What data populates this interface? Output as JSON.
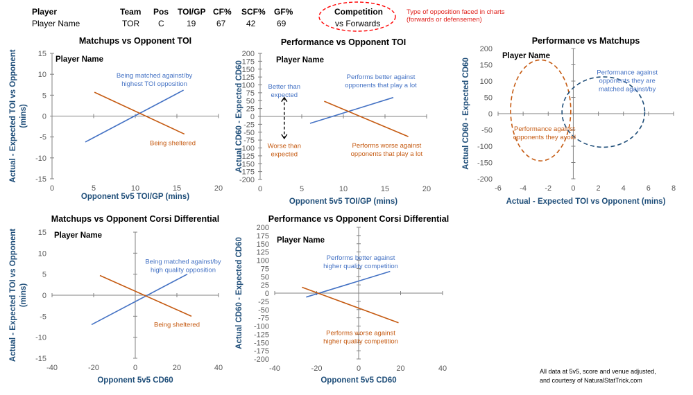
{
  "header": {
    "columns": [
      "Player",
      "Team",
      "Pos",
      "TOI/GP",
      "CF%",
      "SCF%",
      "GF%"
    ],
    "values": [
      "Player Name",
      "TOR",
      "C",
      "19",
      "67",
      "42",
      "69"
    ],
    "competition_label": "Competition",
    "competition_value": "vs Forwards",
    "note_line1": "Type of opposition faced in charts",
    "note_line2": "(forwards or defensemen)"
  },
  "footer": {
    "line1": "All data at 5v5, score and venue adjusted,",
    "line2": "and courtesy of NaturalStatTrick.com"
  },
  "colors": {
    "blue": "#4472c4",
    "orange": "#c55a11",
    "axis": "#1f4e79",
    "red": "#ff0000"
  },
  "chart_data": [
    {
      "type": "line",
      "title": "Matchups vs Opponent TOI",
      "xlabel": "Opponent 5v5 TOI/GP (mins)",
      "ylabel_line1": "Actual - Expected TOI vs Opponent",
      "ylabel_line2": "(mins)",
      "xlim": [
        0,
        20
      ],
      "ylim": [
        -15,
        15
      ],
      "xticks": [
        0,
        5,
        10,
        15,
        20
      ],
      "yticks": [
        -15,
        -10,
        -5,
        0,
        5,
        10,
        15
      ],
      "player_label": "Player Name",
      "series": [
        {
          "name": "matched",
          "color": "blue",
          "x": [
            4,
            15.8
          ],
          "y": [
            -6.2,
            6.2
          ]
        },
        {
          "name": "sheltered",
          "color": "orange",
          "x": [
            5.1,
            15.9
          ],
          "y": [
            5.7,
            -4.3
          ]
        }
      ],
      "annotations": [
        {
          "lines": [
            "Being matched against/by",
            "highest TOI opposition"
          ],
          "color": "blue",
          "x": 12.3,
          "y": 9.2
        },
        {
          "lines": [
            "Being sheltered"
          ],
          "color": "orange",
          "x": 14.5,
          "y": -7
        }
      ]
    },
    {
      "type": "line",
      "title": "Performance vs Opponent TOI",
      "xlabel": "Opponent 5v5 TOI/GP (mins)",
      "ylabel_line1": "Actual CD60 - Expected CD60",
      "ylabel_line2": "",
      "xlim": [
        0,
        20
      ],
      "ylim": [
        -200,
        200
      ],
      "xticks": [
        0,
        5,
        10,
        15,
        20
      ],
      "yticks": [
        -200,
        -175,
        -150,
        -125,
        -100,
        -75,
        -50,
        -25,
        0,
        25,
        50,
        75,
        100,
        125,
        150,
        175,
        200
      ],
      "player_label": "Player Name",
      "series": [
        {
          "name": "better",
          "color": "blue",
          "x": [
            6,
            16
          ],
          "y": [
            -22,
            60
          ]
        },
        {
          "name": "worse",
          "color": "orange",
          "x": [
            7.7,
            17.8
          ],
          "y": [
            48,
            -64
          ]
        }
      ],
      "annotations": [
        {
          "lines": [
            "Better than",
            "expected"
          ],
          "color": "blue",
          "x": 2.9,
          "y": 88
        },
        {
          "lines": [
            "Worse than",
            "expected"
          ],
          "color": "orange",
          "x": 2.9,
          "y": -100
        },
        {
          "lines": [
            "Performs better against",
            "opponents that play a lot"
          ],
          "color": "blue",
          "x": 14.5,
          "y": 119
        },
        {
          "lines": [
            "Performs worse against",
            "opponents that play a lot"
          ],
          "color": "orange",
          "x": 15.2,
          "y": -99
        }
      ]
    },
    {
      "type": "scatter",
      "title": "Performance vs Matchups",
      "xlabel": "Actual - Expected TOI vs Opponent (mins)",
      "ylabel_line1": "Actual CD60 - Expected CD60",
      "ylabel_line2": "",
      "xlim": [
        -6,
        8
      ],
      "ylim": [
        -200,
        200
      ],
      "xticks": [
        -6,
        -4,
        -2,
        0,
        2,
        4,
        6,
        8
      ],
      "yticks": [
        -200,
        -150,
        -100,
        -50,
        0,
        50,
        100,
        150,
        200
      ],
      "player_label": "Player Name",
      "ellipses": [
        {
          "name": "avoid",
          "color": "orange",
          "cx": -2.6,
          "cy": 10,
          "rx": 2.4,
          "ry": 155
        },
        {
          "name": "matched",
          "color": "axis",
          "cx": 2.4,
          "cy": 5,
          "rx": 3.3,
          "ry": 108
        }
      ],
      "annotations": [
        {
          "lines": [
            "Performance against",
            "opponents they are",
            "matched against/by"
          ],
          "color": "blue",
          "x": 4.3,
          "y": 120
        },
        {
          "lines": [
            "Performance against",
            "opponents they avoid"
          ],
          "color": "orange",
          "x": -2.3,
          "y": -53
        }
      ]
    },
    {
      "type": "line",
      "title": "Matchups vs Opponent Corsi Differential",
      "xlabel": "Opponent 5v5 CD60",
      "ylabel_line1": "Actual - Expected TOI vs Opponent",
      "ylabel_line2": "(mins)",
      "xlim": [
        -40,
        40
      ],
      "ylim": [
        -15,
        15
      ],
      "xticks": [
        -40,
        -20,
        0,
        20,
        40
      ],
      "yticks": [
        -15,
        -10,
        -5,
        0,
        5,
        10,
        15
      ],
      "player_label": "Player Name",
      "series": [
        {
          "name": "matched",
          "color": "blue",
          "x": [
            -21,
            25
          ],
          "y": [
            -7,
            5
          ]
        },
        {
          "name": "sheltered",
          "color": "orange",
          "x": [
            -17,
            27
          ],
          "y": [
            4.7,
            -5
          ]
        }
      ],
      "annotations": [
        {
          "lines": [
            "Being matched against/by",
            "high quality opposition"
          ],
          "color": "blue",
          "x": 23,
          "y": 7.5
        },
        {
          "lines": [
            "Being sheltered"
          ],
          "color": "orange",
          "x": 20,
          "y": -7.5
        }
      ]
    },
    {
      "type": "line",
      "title": "Performance vs Opponent Corsi Differential",
      "xlabel": "Opponent 5v5 CD60",
      "ylabel_line1": "Actual CD60 - Expected CD60",
      "ylabel_line2": "",
      "xlim": [
        -40,
        40
      ],
      "ylim": [
        -200,
        200
      ],
      "xticks": [
        -40,
        -20,
        0,
        20,
        40
      ],
      "yticks": [
        -200,
        -175,
        -150,
        -125,
        -100,
        -75,
        -50,
        -25,
        0,
        25,
        50,
        75,
        100,
        125,
        150,
        175,
        200
      ],
      "player_label": "Player Name",
      "series": [
        {
          "name": "better",
          "color": "blue",
          "x": [
            -25,
            15
          ],
          "y": [
            -12,
            66
          ]
        },
        {
          "name": "worse",
          "color": "orange",
          "x": [
            -27,
            19
          ],
          "y": [
            18,
            -90
          ]
        }
      ],
      "annotations": [
        {
          "lines": [
            "Performs better against",
            "higher quality competition"
          ],
          "color": "blue",
          "x": 1,
          "y": 101
        },
        {
          "lines": [
            "Performs worse against",
            "higher quality competition"
          ],
          "color": "orange",
          "x": 1,
          "y": -127
        }
      ]
    }
  ]
}
